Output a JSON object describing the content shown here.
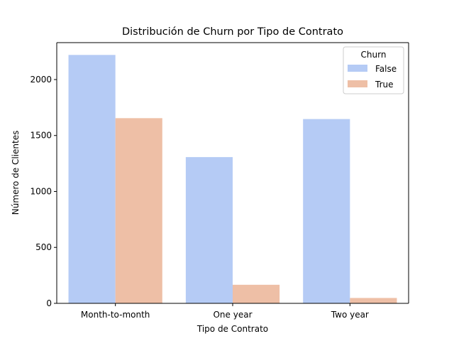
{
  "chart_data": {
    "type": "bar",
    "title": "Distribución de Churn por Tipo de Contrato",
    "xlabel": "Tipo de Contrato",
    "ylabel": "Número de Clientes",
    "categories": [
      "Month-to-month",
      "One year",
      "Two year"
    ],
    "series": [
      {
        "name": "False",
        "color": "#b5cbf5",
        "values": [
          2220,
          1307,
          1647
        ]
      },
      {
        "name": "True",
        "color": "#eebfa6",
        "values": [
          1655,
          166,
          48
        ]
      }
    ],
    "ylim": [
      0,
      2330
    ],
    "yticks": [
      0,
      500,
      1000,
      1500,
      2000
    ],
    "grid": false,
    "legend": {
      "title": "Churn",
      "placement": "top-right"
    }
  }
}
